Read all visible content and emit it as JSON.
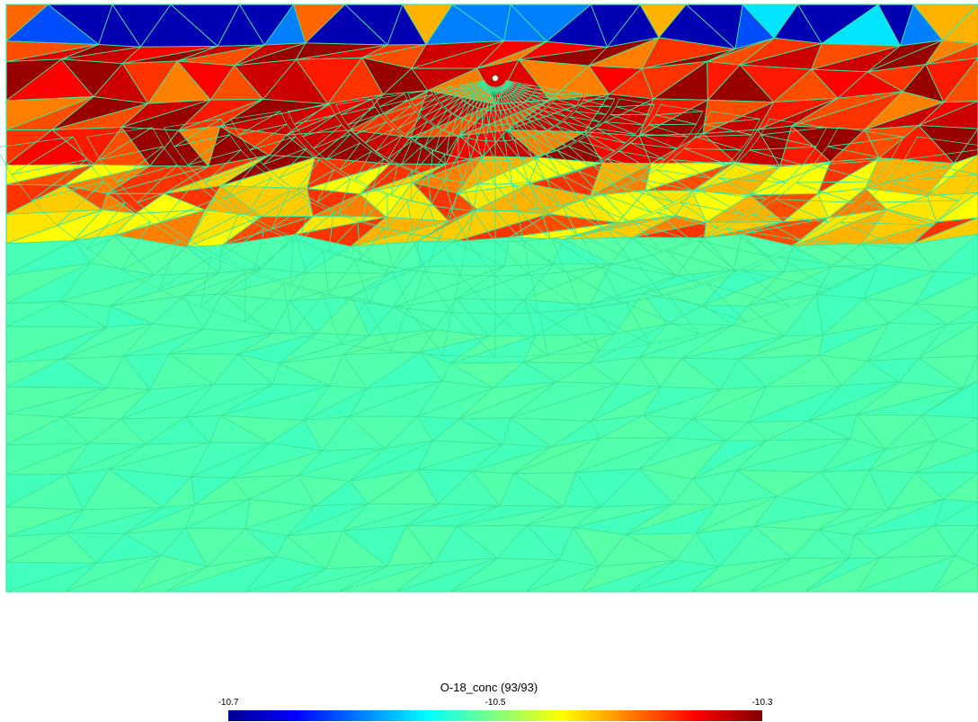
{
  "chart_data": {
    "type": "heatmap",
    "subtype": "triangular-mesh",
    "title": "O-18_conc (93/93)",
    "xlabel": "",
    "ylabel": "",
    "colormap": "jet",
    "color_range": [
      -10.7,
      -10.3
    ],
    "colorbar": {
      "ticks": [
        {
          "value": -10.7,
          "label": "-10.7"
        },
        {
          "value": -10.5,
          "label": "-10.5"
        },
        {
          "value": -10.3,
          "label": "-10.3"
        }
      ],
      "orientation": "horizontal",
      "placement": "bottom-center"
    },
    "grid": false,
    "background_value": -10.52,
    "mesh_line_color": "#3ee69a",
    "description_bands": [
      {
        "zone": "surface row",
        "values": [
          -10.68,
          -10.68,
          -10.62,
          -10.68,
          -10.39,
          -10.6,
          -10.68,
          -10.42,
          -10.68,
          -10.56,
          -10.42,
          -10.68,
          -10.6
        ]
      },
      {
        "zone": "shallow band",
        "values": [
          -10.4,
          -10.36,
          -10.34,
          -10.31,
          -10.37,
          -10.33,
          -10.35,
          -10.31,
          -10.38,
          -10.33
        ]
      },
      {
        "zone": "transition band",
        "values": [
          -10.44,
          -10.42,
          -10.38,
          -10.45,
          -10.4,
          -10.43,
          -10.37
        ]
      },
      {
        "zone": "deep domain",
        "values": [
          -10.52
        ]
      }
    ]
  },
  "colors": {
    "background": "#ffffff",
    "mesh_edge": "#3ee69a",
    "deep_fill": "#9afa78"
  }
}
